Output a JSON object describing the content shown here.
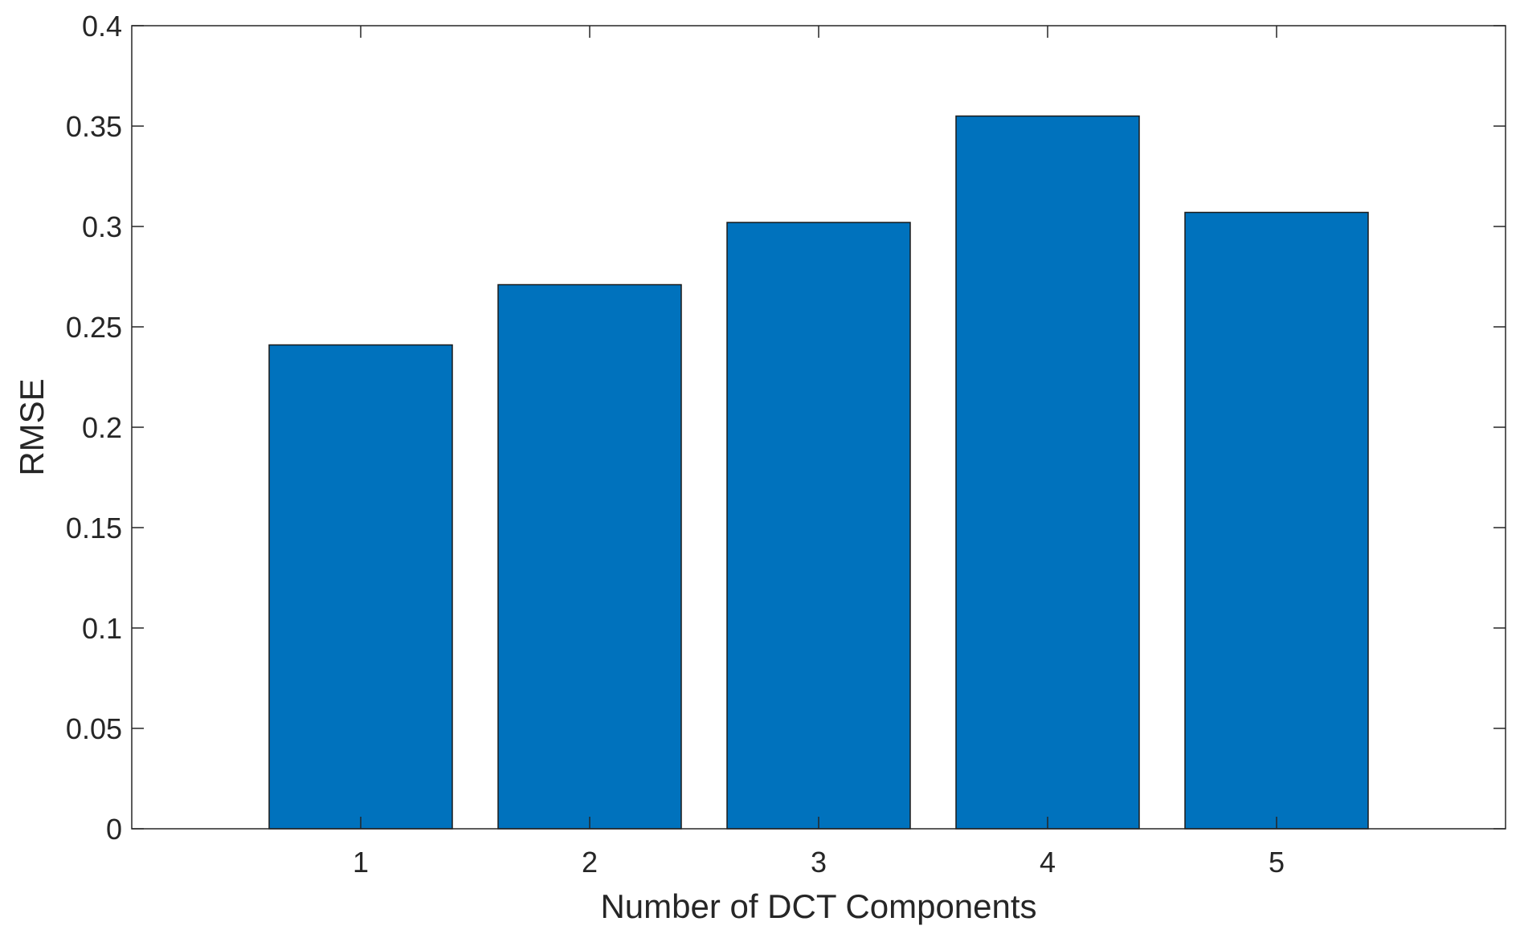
{
  "chart_data": {
    "type": "bar",
    "categories": [
      "1",
      "2",
      "3",
      "4",
      "5"
    ],
    "values": [
      0.241,
      0.271,
      0.302,
      0.355,
      0.307
    ],
    "xlabel": "Number of DCT Components",
    "ylabel": "RMSE",
    "xlim": [
      0,
      6
    ],
    "ylim": [
      0,
      0.4
    ],
    "yticks": [
      "0",
      "0.05",
      "0.1",
      "0.15",
      "0.2",
      "0.25",
      "0.3",
      "0.35",
      "0.4"
    ],
    "ytick_values": [
      0,
      0.05,
      0.1,
      0.15,
      0.2,
      0.25,
      0.3,
      0.35,
      0.4
    ],
    "bar_color": "#0072BD",
    "grid": false,
    "legend": "none"
  }
}
